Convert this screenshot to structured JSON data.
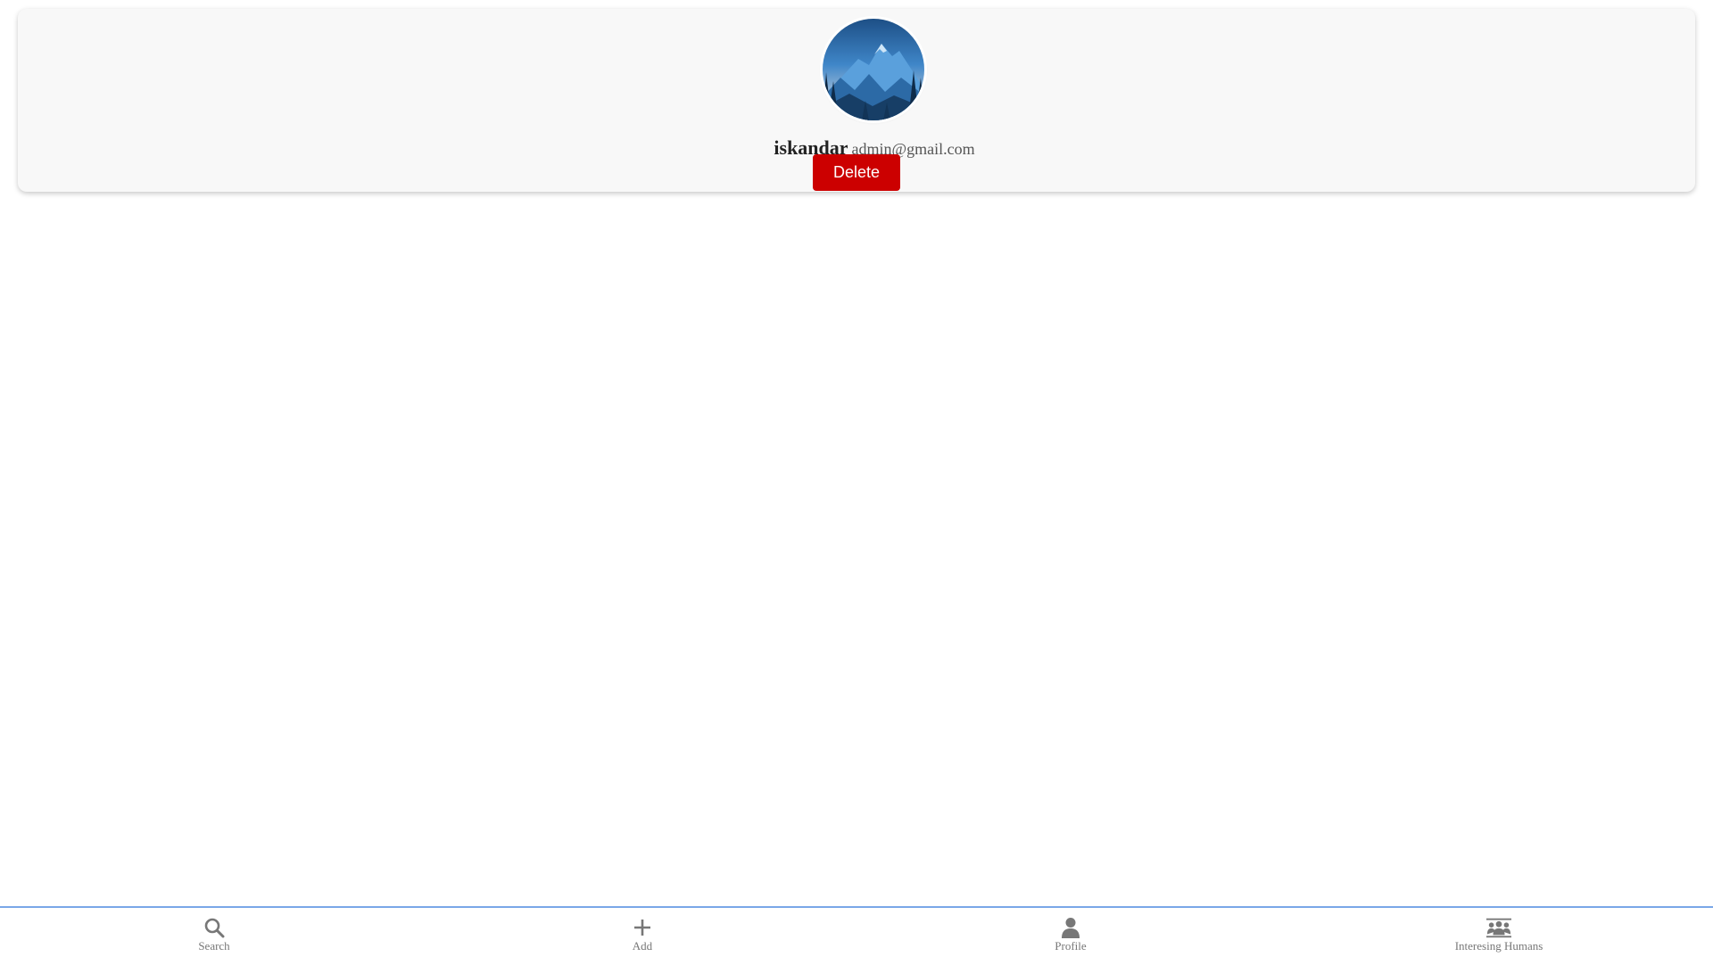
{
  "profile": {
    "username": "iskandar",
    "email": "admin@gmail.com",
    "avatar_icon": "mountain-landscape-avatar",
    "delete_label": "Delete"
  },
  "nav": {
    "items": [
      {
        "label": "Search",
        "icon": "search-icon"
      },
      {
        "label": "Add",
        "icon": "plus-icon"
      },
      {
        "label": "Profile",
        "icon": "person-icon"
      },
      {
        "label": "Interesing Humans",
        "icon": "group-icon"
      }
    ]
  },
  "colors": {
    "delete_button": "#cc0000",
    "nav_border": "#7aa7e8",
    "card_background": "#f8f8f8",
    "nav_icon": "#777777"
  }
}
